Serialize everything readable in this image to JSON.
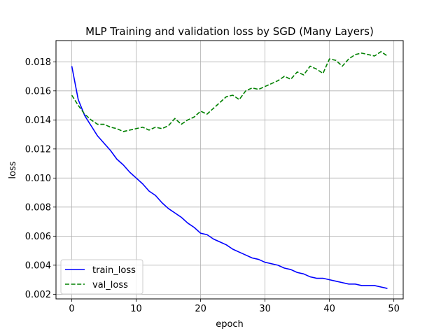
{
  "chart_data": {
    "type": "line",
    "title": "MLP Training and validation loss by SGD (Many Layers)",
    "xlabel": "epoch",
    "ylabel": "loss",
    "xlim": [
      -2.45,
      51.45
    ],
    "ylim": [
      0.00168,
      0.01946
    ],
    "xticks": [
      0,
      10,
      20,
      30,
      40,
      50
    ],
    "xtick_labels": [
      "0",
      "10",
      "20",
      "30",
      "40",
      "50"
    ],
    "yticks": [
      0.002,
      0.004,
      0.006,
      0.008,
      0.01,
      0.012,
      0.014,
      0.016,
      0.018
    ],
    "ytick_labels": [
      "0.002",
      "0.004",
      "0.006",
      "0.008",
      "0.010",
      "0.012",
      "0.014",
      "0.016",
      "0.018"
    ],
    "grid": true,
    "legend_position": "lower-left",
    "x": [
      0,
      1,
      2,
      3,
      4,
      5,
      6,
      7,
      8,
      9,
      10,
      11,
      12,
      13,
      14,
      15,
      16,
      17,
      18,
      19,
      20,
      21,
      22,
      23,
      24,
      25,
      26,
      27,
      28,
      29,
      30,
      31,
      32,
      33,
      34,
      35,
      36,
      37,
      38,
      39,
      40,
      41,
      42,
      43,
      44,
      45,
      46,
      47,
      48,
      49
    ],
    "series": [
      {
        "name": "train_loss",
        "color": "#0000ff",
        "style": "solid",
        "values": [
          0.0177,
          0.0154,
          0.0143,
          0.0136,
          0.0129,
          0.0124,
          0.0119,
          0.0113,
          0.0109,
          0.0104,
          0.01,
          0.0096,
          0.0091,
          0.0088,
          0.0083,
          0.0079,
          0.0076,
          0.0073,
          0.0069,
          0.0066,
          0.0062,
          0.0061,
          0.0058,
          0.0056,
          0.0054,
          0.0051,
          0.0049,
          0.0047,
          0.0045,
          0.0044,
          0.0042,
          0.0041,
          0.004,
          0.0038,
          0.0037,
          0.0035,
          0.0034,
          0.0032,
          0.0031,
          0.0031,
          0.003,
          0.0029,
          0.0028,
          0.0027,
          0.0027,
          0.0026,
          0.0026,
          0.0026,
          0.0025,
          0.0024
        ]
      },
      {
        "name": "val_loss",
        "color": "#008000",
        "style": "dashed",
        "values": [
          0.0157,
          0.015,
          0.0144,
          0.014,
          0.0137,
          0.0137,
          0.0135,
          0.0134,
          0.0132,
          0.0133,
          0.0134,
          0.0135,
          0.0133,
          0.0135,
          0.0134,
          0.0136,
          0.0141,
          0.0137,
          0.014,
          0.0142,
          0.0146,
          0.0144,
          0.0148,
          0.0152,
          0.0156,
          0.0157,
          0.0154,
          0.016,
          0.0162,
          0.0161,
          0.0163,
          0.0165,
          0.0167,
          0.017,
          0.0168,
          0.0173,
          0.0171,
          0.0177,
          0.0175,
          0.0172,
          0.0182,
          0.0181,
          0.0177,
          0.0182,
          0.0185,
          0.0186,
          0.0185,
          0.0184,
          0.0187,
          0.0184
        ]
      }
    ]
  }
}
